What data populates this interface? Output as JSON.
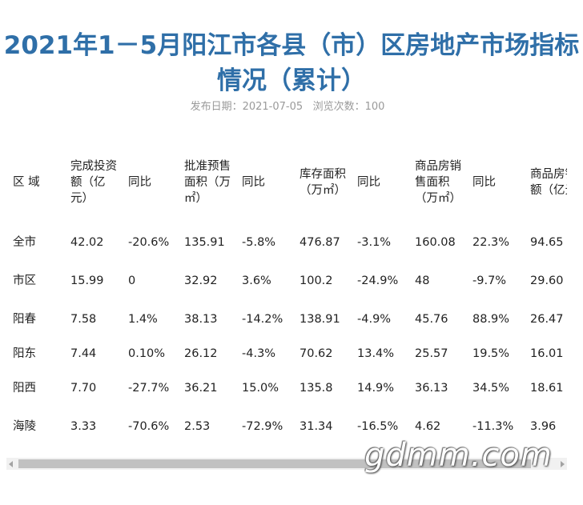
{
  "title": "2021年1－5月阳江市各县（市）区房地产市场指标情况（累计）",
  "meta": {
    "publish_label": "发布日期：",
    "publish_date": "2021-07-05",
    "views_label": "浏览次数：",
    "views": "100"
  },
  "table": {
    "headers": [
      "区 域",
      "完成投资额（亿元）",
      "同比",
      "批准预售面积（万㎡）",
      "同比",
      "库存面积（万㎡）",
      "同比",
      "商品房销售面积（万㎡）",
      "同比",
      "商品房销售额（亿元）"
    ],
    "rows": [
      [
        "全市",
        "42.02",
        "-20.6%",
        "135.91",
        "-5.8%",
        "476.87",
        "-3.1%",
        "160.08",
        "22.3%",
        "94.65"
      ],
      [
        "市区",
        "15.99",
        "0",
        "32.92",
        "3.6%",
        "100.2",
        "-24.9%",
        "48",
        "-9.7%",
        "29.60"
      ],
      [
        "阳春",
        "7.58",
        "1.4%",
        "38.13",
        "-14.2%",
        "138.91",
        "-4.9%",
        "45.76",
        "88.9%",
        "26.47"
      ],
      [
        "阳东",
        "7.44",
        "0.10%",
        "26.12",
        "-4.3%",
        "70.62",
        "13.4%",
        "25.57",
        "19.5%",
        "16.01"
      ],
      [
        "阳西",
        "7.70",
        "-27.7%",
        "36.21",
        "15.0%",
        "135.8",
        "14.9%",
        "36.13",
        "34.5%",
        "18.61"
      ],
      [
        "海陵",
        "3.33",
        "-70.6%",
        "2.53",
        "-72.9%",
        "31.34",
        "-16.5%",
        "4.62",
        "-11.3%",
        "3.96"
      ]
    ]
  },
  "watermark": "gdmm.com",
  "colors": {
    "title": "#2f6fa8",
    "meta": "#9a9a9a",
    "text": "#222222",
    "scrollbar_track": "#f1f1f1",
    "scrollbar_thumb": "#c1c1c1"
  }
}
